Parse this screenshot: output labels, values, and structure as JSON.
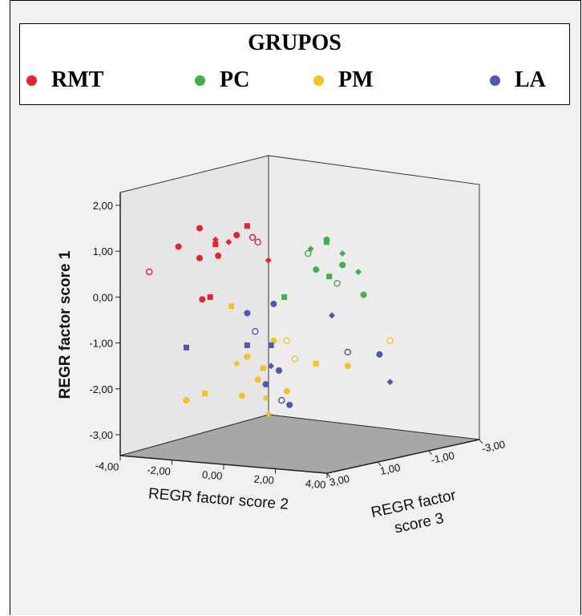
{
  "chart_data": {
    "type": "scatter",
    "title": "GRUPOS",
    "legend_position": "top",
    "series": [
      {
        "name": "RMT",
        "color": "#e8232e",
        "points": [
          [
            1.5,
            1.5
          ],
          [
            1.8,
            1.25
          ],
          [
            2.4,
            1.55
          ],
          [
            1.1,
            1.1
          ],
          [
            2.6,
            1.2
          ],
          [
            1.5,
            0.85
          ],
          [
            2.05,
            1.2
          ],
          [
            1.8,
            1.15
          ],
          [
            2.2,
            1.35
          ],
          [
            2.5,
            1.3
          ],
          [
            1.85,
            0.9
          ],
          [
            2.8,
            0.8
          ],
          [
            1.7,
            0.0
          ],
          [
            1.55,
            -0.05
          ],
          [
            0.55,
            0.55
          ]
        ]
      },
      {
        "name": "PC",
        "color": "#3db24b",
        "points": [
          [
            3.6,
            1.05
          ],
          [
            3.9,
            1.2
          ],
          [
            3.9,
            1.25
          ],
          [
            3.55,
            0.95
          ],
          [
            4.2,
            0.7
          ],
          [
            4.5,
            0.55
          ],
          [
            3.95,
            0.45
          ],
          [
            3.7,
            0.6
          ],
          [
            4.1,
            0.3
          ],
          [
            4.6,
            0.05
          ],
          [
            4.2,
            0.95
          ],
          [
            3.1,
            0.0
          ]
        ]
      },
      {
        "name": "PM",
        "color": "#f6c223",
        "points": [
          [
            2.1,
            -0.2
          ],
          [
            2.9,
            -0.95
          ],
          [
            3.15,
            -0.95
          ],
          [
            2.4,
            -1.3
          ],
          [
            2.2,
            -1.45
          ],
          [
            2.7,
            -1.55
          ],
          [
            2.6,
            -1.8
          ],
          [
            3.3,
            -1.35
          ],
          [
            2.3,
            -2.15
          ],
          [
            2.75,
            -2.2
          ],
          [
            3.7,
            -1.45
          ],
          [
            4.3,
            -1.5
          ],
          [
            5.1,
            -0.95
          ],
          [
            3.15,
            -2.05
          ],
          [
            2.8,
            -2.55
          ],
          [
            1.6,
            -2.1
          ],
          [
            1.25,
            -2.25
          ]
        ]
      },
      {
        "name": "LA",
        "color": "#4d57b9",
        "points": [
          [
            2.4,
            -0.35
          ],
          [
            2.55,
            -0.75
          ],
          [
            2.9,
            -0.15
          ],
          [
            4.0,
            -0.4
          ],
          [
            2.85,
            -1.05
          ],
          [
            3.0,
            -1.6
          ],
          [
            4.3,
            -1.2
          ],
          [
            4.9,
            -1.25
          ],
          [
            2.85,
            -1.5
          ],
          [
            2.4,
            -1.05
          ],
          [
            2.75,
            -1.9
          ],
          [
            3.05,
            -2.25
          ],
          [
            3.2,
            -2.35
          ],
          [
            5.1,
            -1.85
          ],
          [
            1.25,
            -1.1
          ],
          [
            3.0,
            -1.6
          ]
        ]
      }
    ],
    "axes": {
      "vertical": {
        "label": "REGR factor score  1",
        "range": [
          -3.0,
          2.0
        ],
        "ticks": [
          "2,00",
          "1,00",
          "0,00",
          "-1,00",
          "-2,00",
          "-3,00"
        ]
      },
      "front": {
        "label": "REGR factor score  2",
        "range": [
          -4.0,
          4.0
        ],
        "ticks": [
          "-4,00",
          "-2,00",
          "0,00",
          "2,00",
          "4,00"
        ]
      },
      "side": {
        "label": [
          "REGR factor",
          "score  3"
        ],
        "range": [
          3.0,
          -3.0
        ],
        "ticks": [
          "3,00",
          "1,00",
          "-1,00",
          "-3,00"
        ]
      }
    },
    "grid": false
  },
  "legend": {
    "title": "GRUPOS",
    "items": [
      {
        "label": "RMT",
        "color": "#e8232e"
      },
      {
        "label": "PC",
        "color": "#3db24b"
      },
      {
        "label": "PM",
        "color": "#f6c223"
      },
      {
        "label": "LA",
        "color": "#4d57b9"
      }
    ]
  }
}
